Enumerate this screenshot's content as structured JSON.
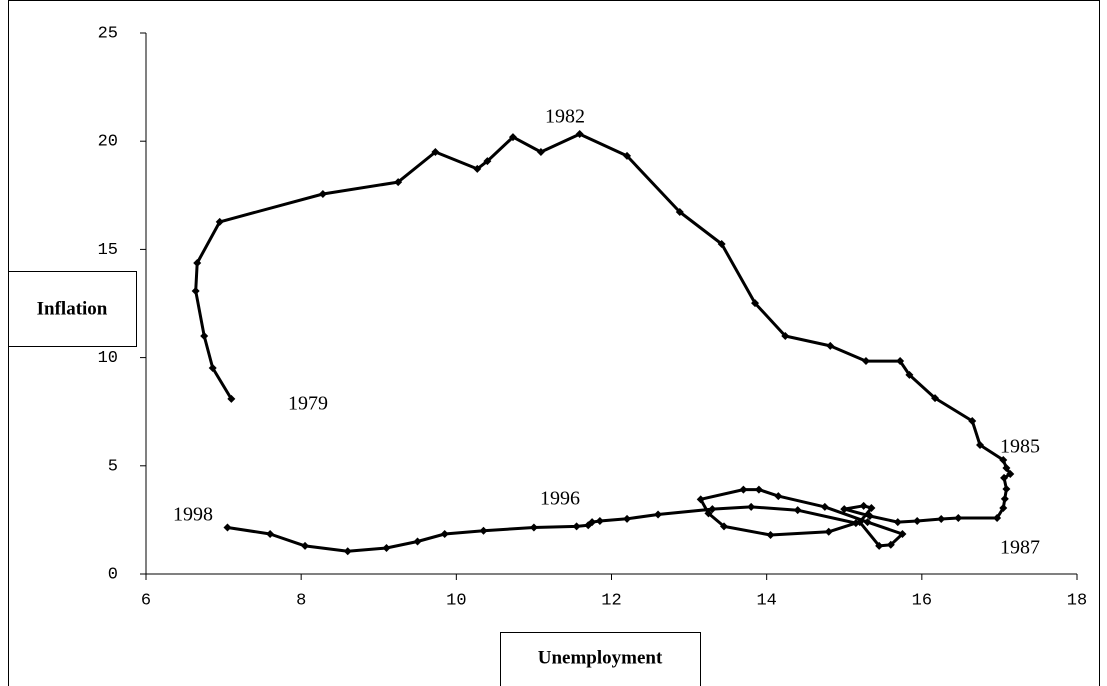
{
  "chart_data": {
    "type": "line",
    "color": "#000000",
    "x_label": "Unemployment",
    "y_label": "Inflation",
    "annotations": [
      "1982",
      "1979",
      "1985",
      "1996",
      "1998",
      "1987"
    ],
    "xlim": [
      6,
      18
    ],
    "xticks": [
      6,
      8,
      10,
      12,
      14,
      16,
      18
    ],
    "ylim": [
      0,
      25
    ],
    "yticks": [
      0,
      5,
      10,
      15,
      20,
      25
    ],
    "x": [
      7.1,
      6.86,
      6.75,
      6.64,
      6.66,
      6.95,
      8.28,
      9.25,
      9.73,
      10.27,
      10.4,
      10.73,
      11.09,
      11.59,
      12.2,
      12.88,
      13.42,
      13.85,
      14.24,
      14.82,
      15.28,
      15.72,
      15.84,
      16.17,
      16.65,
      16.75,
      17.05,
      17.09,
      17.14,
      17.06,
      17.09,
      17.07,
      17.05,
      16.97,
      16.47,
      16.25,
      15.94,
      15.69,
      15.33,
      15.0,
      15.25,
      15.35,
      15.2,
      15.45,
      15.6,
      15.75,
      15.3,
      14.75,
      14.15,
      13.9,
      13.7,
      13.15,
      13.25,
      13.45,
      14.05,
      14.8,
      15.15,
      14.4,
      13.8,
      13.3,
      12.6,
      12.2,
      11.85,
      11.75,
      11.7,
      11.55,
      11.0,
      10.35,
      9.85,
      9.5,
      9.1,
      8.6,
      8.05,
      7.6,
      7.05
    ],
    "values": [
      8.09,
      9.52,
      11.0,
      13.08,
      14.37,
      16.27,
      17.56,
      18.11,
      19.5,
      18.72,
      19.08,
      20.19,
      19.5,
      20.33,
      19.32,
      16.73,
      15.25,
      12.52,
      11.0,
      10.54,
      9.84,
      9.84,
      9.2,
      8.13,
      7.07,
      5.96,
      5.27,
      4.9,
      4.62,
      4.44,
      3.93,
      3.47,
      3.05,
      2.59,
      2.59,
      2.54,
      2.45,
      2.4,
      2.68,
      3.0,
      3.15,
      3.05,
      2.4,
      1.3,
      1.35,
      1.85,
      2.4,
      3.1,
      3.6,
      3.9,
      3.9,
      3.45,
      2.8,
      2.2,
      1.8,
      1.95,
      2.35,
      2.95,
      3.1,
      3.0,
      2.75,
      2.55,
      2.45,
      2.4,
      2.25,
      2.2,
      2.15,
      2.0,
      1.85,
      1.5,
      1.2,
      1.05,
      1.3,
      1.85,
      2.15
    ]
  }
}
